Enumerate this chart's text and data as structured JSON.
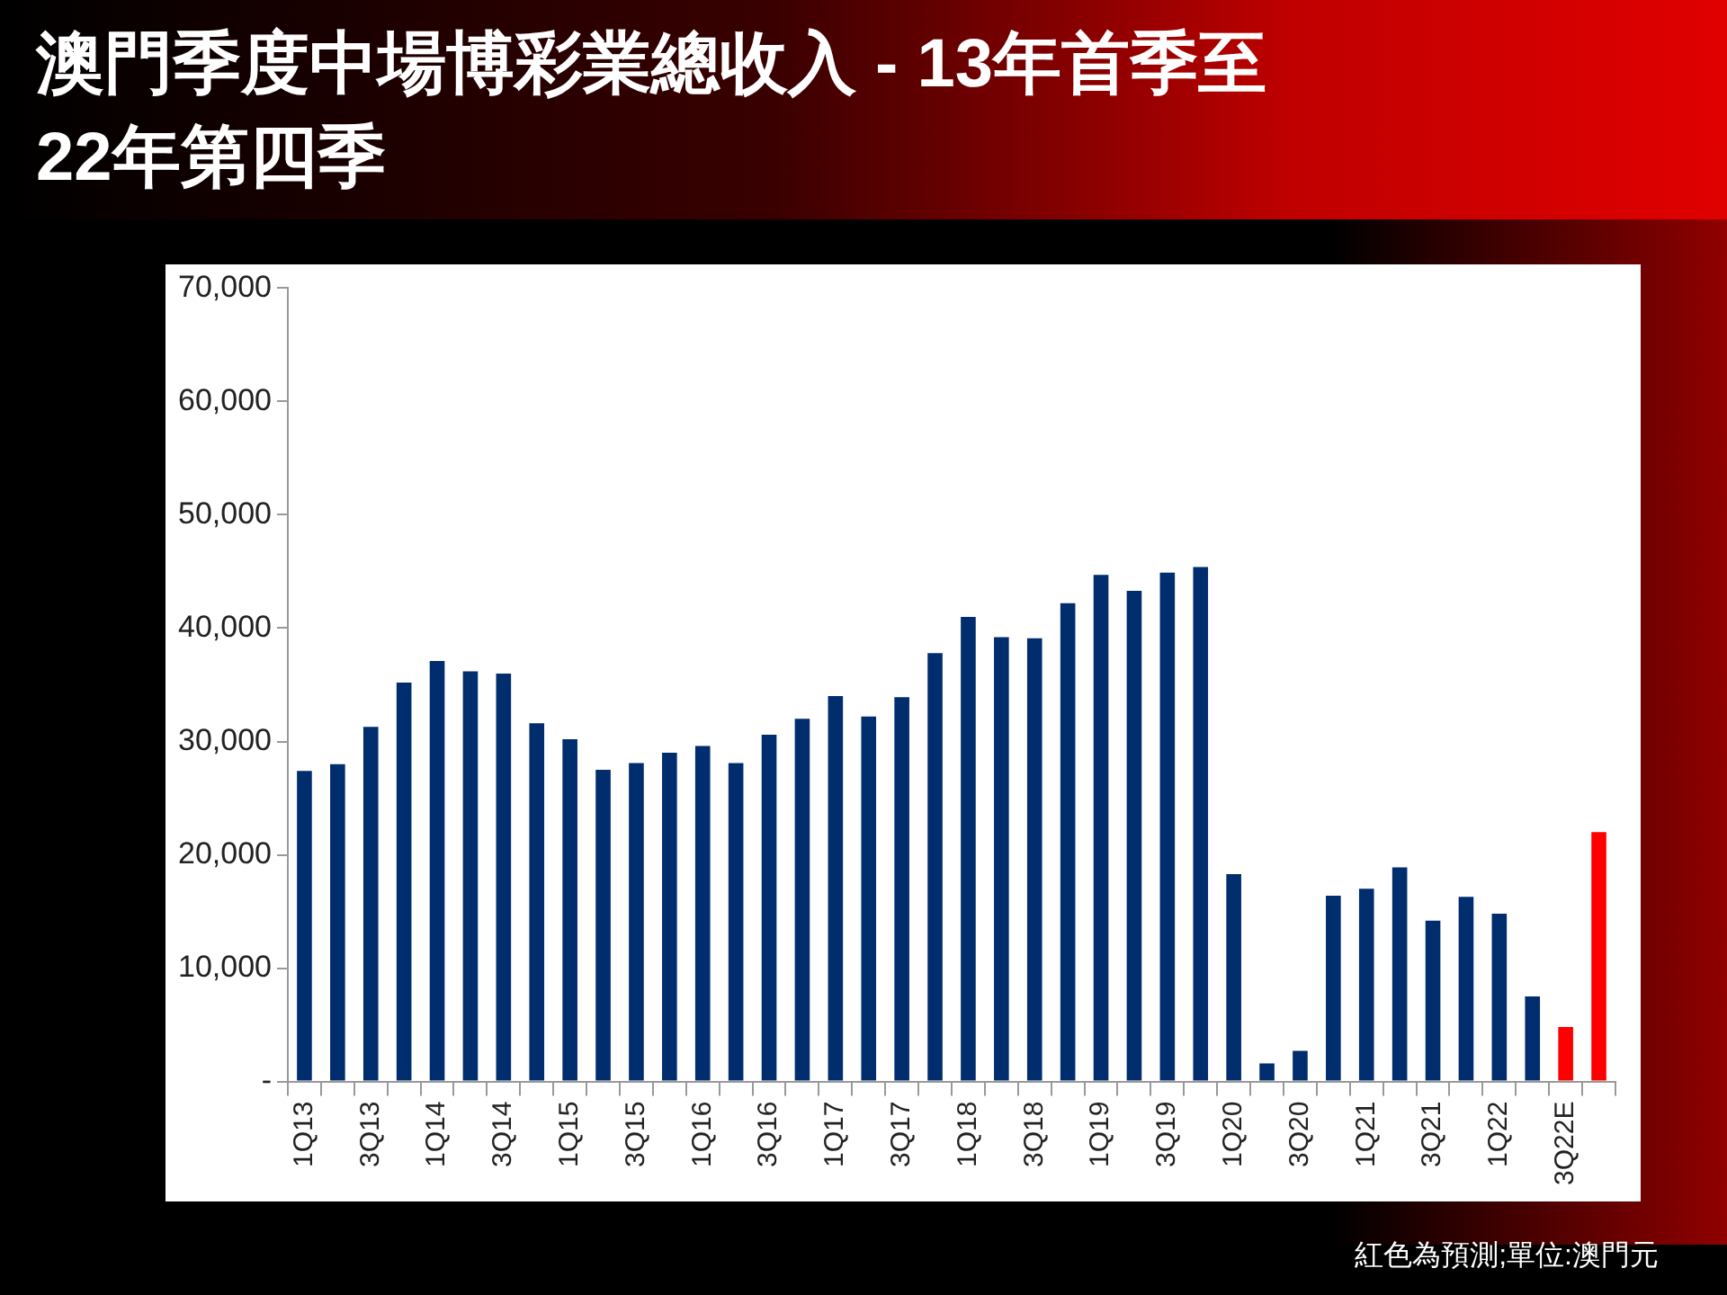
{
  "chart_data": {
    "type": "bar",
    "title": "澳門季度中場博彩業總收入 - 13年首季至22年第四季",
    "categories": [
      "1Q13",
      null,
      "3Q13",
      null,
      "1Q14",
      null,
      "3Q14",
      null,
      "1Q15",
      null,
      "3Q15",
      null,
      "1Q16",
      null,
      "3Q16",
      null,
      "1Q17",
      null,
      "3Q17",
      null,
      "1Q18",
      null,
      "3Q18",
      null,
      "1Q19",
      null,
      "3Q19",
      null,
      "1Q20",
      null,
      "3Q20",
      null,
      "1Q21",
      null,
      "3Q21",
      null,
      "1Q22",
      null,
      "3Q22E",
      null
    ],
    "values": [
      27400,
      28000,
      31300,
      35200,
      37100,
      36200,
      36000,
      31600,
      30200,
      27500,
      28100,
      29000,
      29600,
      28100,
      30600,
      32000,
      34000,
      32200,
      33900,
      37800,
      41000,
      39200,
      39100,
      42200,
      44700,
      43300,
      44900,
      45400,
      18300,
      1600,
      2700,
      16400,
      17000,
      18900,
      14200,
      16300,
      14800,
      7500,
      4800,
      22000
    ],
    "colors": [
      "#002d6e",
      "#002d6e",
      "#002d6e",
      "#002d6e",
      "#002d6e",
      "#002d6e",
      "#002d6e",
      "#002d6e",
      "#002d6e",
      "#002d6e",
      "#002d6e",
      "#002d6e",
      "#002d6e",
      "#002d6e",
      "#002d6e",
      "#002d6e",
      "#002d6e",
      "#002d6e",
      "#002d6e",
      "#002d6e",
      "#002d6e",
      "#002d6e",
      "#002d6e",
      "#002d6e",
      "#002d6e",
      "#002d6e",
      "#002d6e",
      "#002d6e",
      "#002d6e",
      "#002d6e",
      "#002d6e",
      "#002d6e",
      "#002d6e",
      "#002d6e",
      "#002d6e",
      "#002d6e",
      "#002d6e",
      "#002d6e",
      "#ff0000",
      "#ff0000"
    ],
    "ylim": [
      0,
      70000
    ],
    "yticks": [
      {
        "value": 0,
        "label": "-"
      },
      {
        "value": 10000,
        "label": "10,000"
      },
      {
        "value": 20000,
        "label": "20,000"
      },
      {
        "value": 30000,
        "label": "30,000"
      },
      {
        "value": 40000,
        "label": "40,000"
      },
      {
        "value": 50000,
        "label": "50,000"
      },
      {
        "value": 60000,
        "label": "60,000"
      },
      {
        "value": 70000,
        "label": "70,000"
      }
    ],
    "grid": false,
    "annotations": [
      "紅色為預測;單位:澳門元"
    ]
  }
}
